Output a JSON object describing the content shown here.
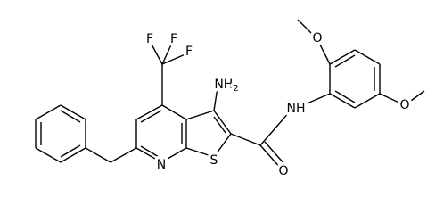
{
  "atoms": [
    {
      "label": "F"
    },
    {
      "label": "F"
    },
    {
      "label": "F"
    },
    {
      "label": "NH",
      "subscript": "2"
    },
    {
      "label": "NH"
    },
    {
      "label": "O"
    },
    {
      "label": "O"
    },
    {
      "label": "O"
    },
    {
      "label": "N"
    },
    {
      "label": "S"
    }
  ]
}
